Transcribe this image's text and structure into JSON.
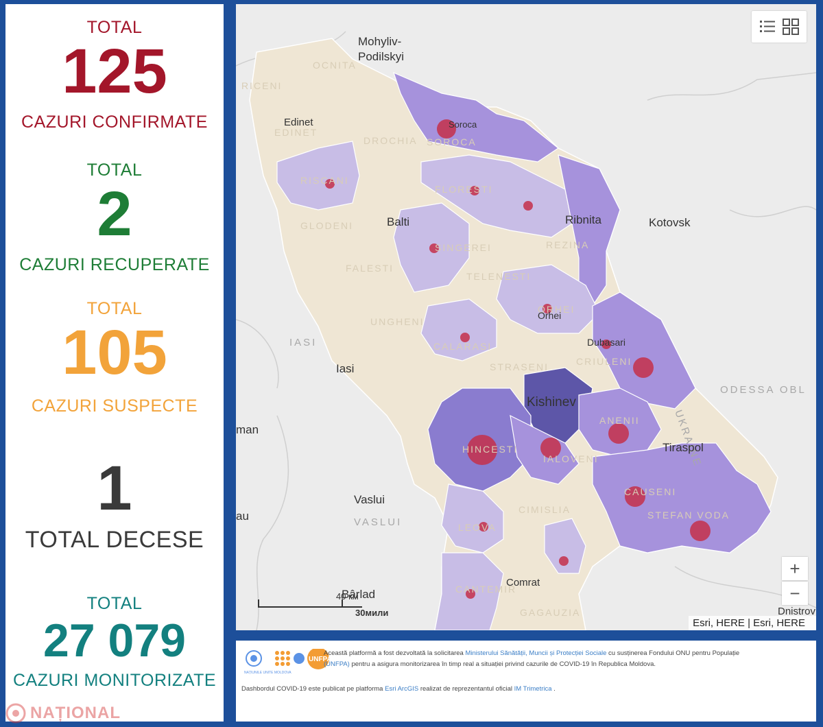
{
  "stats": {
    "confirmed": {
      "top": "TOTAL",
      "value": "125",
      "label": "CAZURI CONFIRMATE",
      "color": "#a3162a"
    },
    "recovered": {
      "top": "TOTAL",
      "value": "2",
      "label": "CAZURI RECUPERATE",
      "color": "#1e7d36"
    },
    "suspected": {
      "top": "TOTAL",
      "value": "105",
      "label": "CAZURI SUSPECTE",
      "color": "#f2a33a"
    },
    "deaths": {
      "value": "1",
      "label": "TOTAL DECESE",
      "color": "#3a3a3a"
    },
    "monitored": {
      "top": "TOTAL",
      "value": "27 079",
      "label": "CAZURI MONITORIZATE",
      "color": "#13807f"
    }
  },
  "map": {
    "places": [
      "Mohyliv-",
      "Podilskyi",
      "Edinet",
      "Soroca",
      "Balti",
      "Ribnita",
      "Kotovsk",
      "Orhei",
      "Dubasari",
      "Iasi",
      "Kishinev",
      "Tiraspol",
      "Vaslui",
      "Comrat",
      "Bârlad",
      "man",
      "au",
      "Dnistrov"
    ],
    "regions": [
      "OCNITA",
      "RICENI",
      "EDINET",
      "DROCHIA",
      "SOROCA",
      "RISCANI",
      "FLORESTI",
      "GLODENI",
      "SINGEREI",
      "REZINA",
      "FALESTI",
      "TELENESTI",
      "UNGHENI",
      "ORHEI",
      "CALARASI",
      "STRASENI",
      "CRIULENI",
      "HINCESTI",
      "IALOVENI",
      "ANENII",
      "CAUSENI",
      "STEFAN VODA",
      "CIMISLIA",
      "LEOVA",
      "CANTEMIR",
      "GAGAUZIA",
      "UKRAINE",
      "ODESSA OBL",
      "IASI",
      "VASLUI"
    ],
    "zoom_in": "+",
    "zoom_out": "−",
    "attribution": "Esri, HERE | Esri, HERE",
    "scale_top": "40 км",
    "scale_bottom": "30мили",
    "colors": {
      "land": "#efe6d4",
      "light": "#c8bde6",
      "mid": "#a692dc",
      "dark": "#8a7ccf",
      "capital": "#5d56a8",
      "dot": "#c4304a",
      "water": "#ececec"
    }
  },
  "footer": {
    "line1_a": "Această platformă a fost dezvoltată la solicitarea ",
    "line1_link": "Ministerului Sănătății, Muncii și Protecției Sociale",
    "line1_b": " cu susținerea Fondului ONU pentru Populație",
    "line2_link": "(UNFPA)",
    "line2_b": " pentru a asigura monitorizarea în timp real a situației privind cazurile de  COVID-19 în Republica Moldova.",
    "line3_a": "Dashbordul COVID-19 este publicat pe platforma ",
    "line3_link1": "Esri ArcGIS",
    "line3_b": " realizat de reprezentantul oficial ",
    "line3_link2": "IM Trimetrica",
    "line3_c": " .",
    "logo_un": "NAȚIUNILE UNITE MOLDOVA",
    "logo_unfpa": "UNFPA"
  },
  "watermark": "NAȚIONAL"
}
